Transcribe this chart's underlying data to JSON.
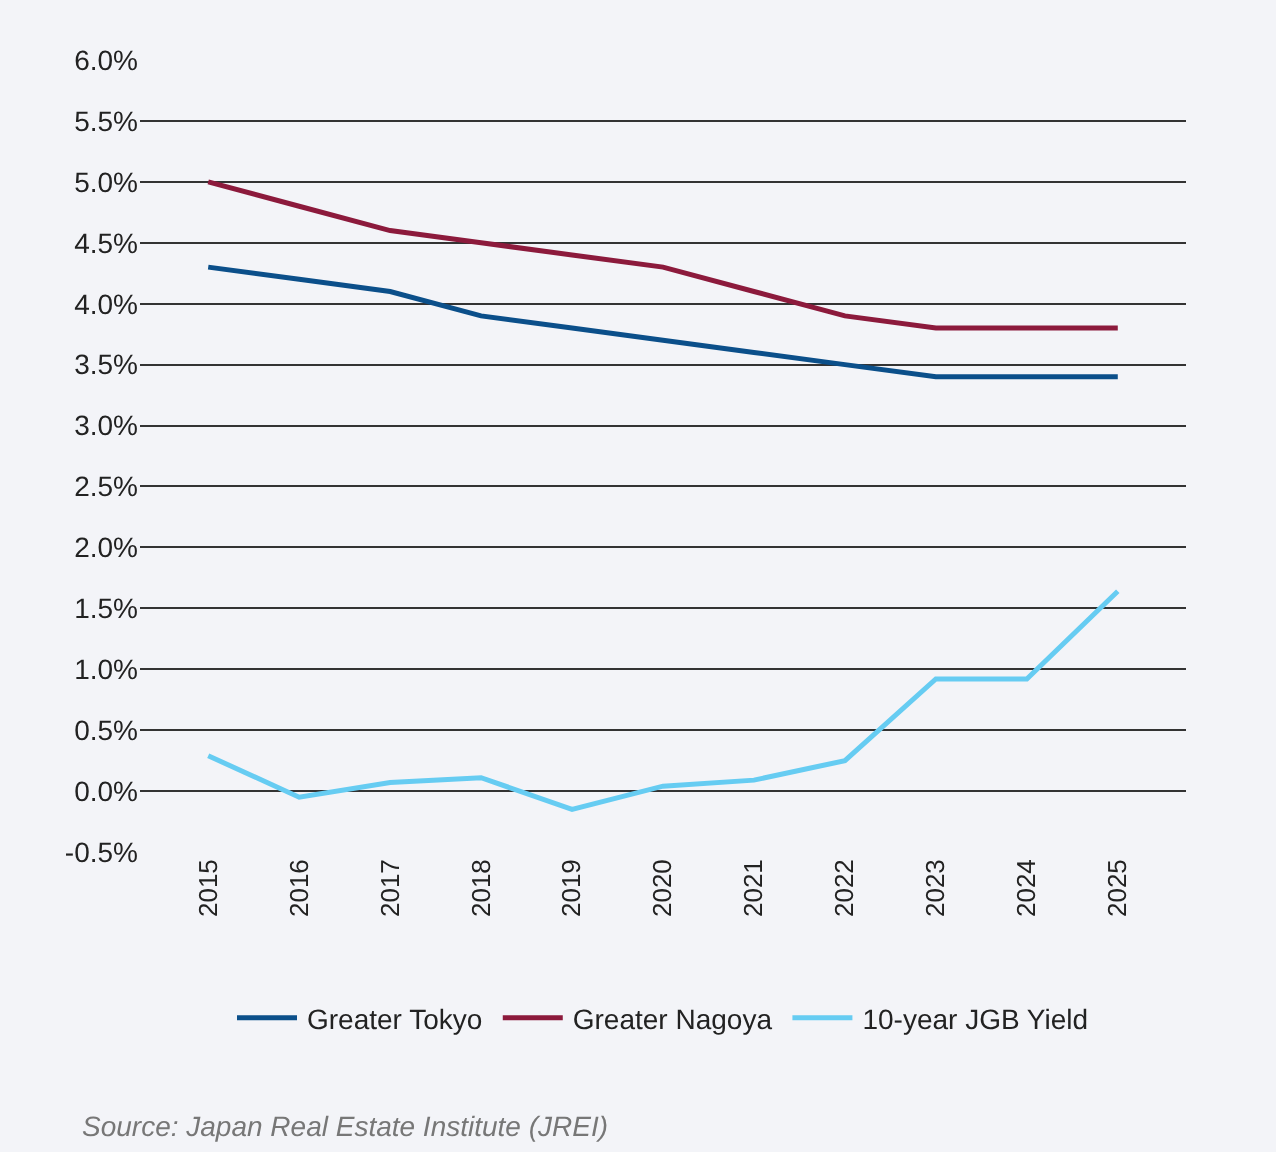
{
  "chart_data": {
    "type": "line",
    "categories": [
      "2015",
      "2016",
      "2017",
      "2018",
      "2019",
      "2020",
      "2021",
      "2022",
      "2023",
      "2024",
      "2025"
    ],
    "series": [
      {
        "name": "Greater Tokyo",
        "color": "#0b4f8a",
        "values": [
          4.3,
          4.2,
          4.1,
          3.9,
          3.8,
          3.7,
          3.6,
          3.5,
          3.4,
          3.4,
          3.4
        ]
      },
      {
        "name": "Greater Nagoya",
        "color": "#8c1a3c",
        "values": [
          5.0,
          4.8,
          4.6,
          4.5,
          4.4,
          4.3,
          4.1,
          3.9,
          3.8,
          3.8,
          3.8
        ]
      },
      {
        "name": "10-year JGB Yield",
        "color": "#66ccf2",
        "values": [
          0.29,
          -0.05,
          0.07,
          0.11,
          -0.15,
          0.04,
          0.09,
          0.25,
          0.92,
          0.92,
          1.64
        ]
      }
    ],
    "ylim": [
      -0.5,
      6.0
    ],
    "yticks": [
      {
        "value": -0.5,
        "label": "-0.5%"
      },
      {
        "value": 0,
        "label": "0.0%"
      },
      {
        "value": 0.5,
        "label": "0.5%"
      },
      {
        "value": 1,
        "label": "1.0%"
      },
      {
        "value": 1.5,
        "label": "1.5%"
      },
      {
        "value": 2,
        "label": "2.0%"
      },
      {
        "value": 2.5,
        "label": "2.5%"
      },
      {
        "value": 3,
        "label": "3.0%"
      },
      {
        "value": 3.5,
        "label": "3.5%"
      },
      {
        "value": 4,
        "label": "4.0%"
      },
      {
        "value": 4.5,
        "label": "4.5%"
      },
      {
        "value": 5,
        "label": "5.0%"
      },
      {
        "value": 5.5,
        "label": "5.5%"
      },
      {
        "value": 6,
        "label": "6.0%"
      }
    ],
    "grid": "y",
    "legend": "bottom",
    "marker": "none",
    "line_style": "solid",
    "annotations": [
      "Source: Japan Real Estate Institute (JREI)"
    ]
  }
}
